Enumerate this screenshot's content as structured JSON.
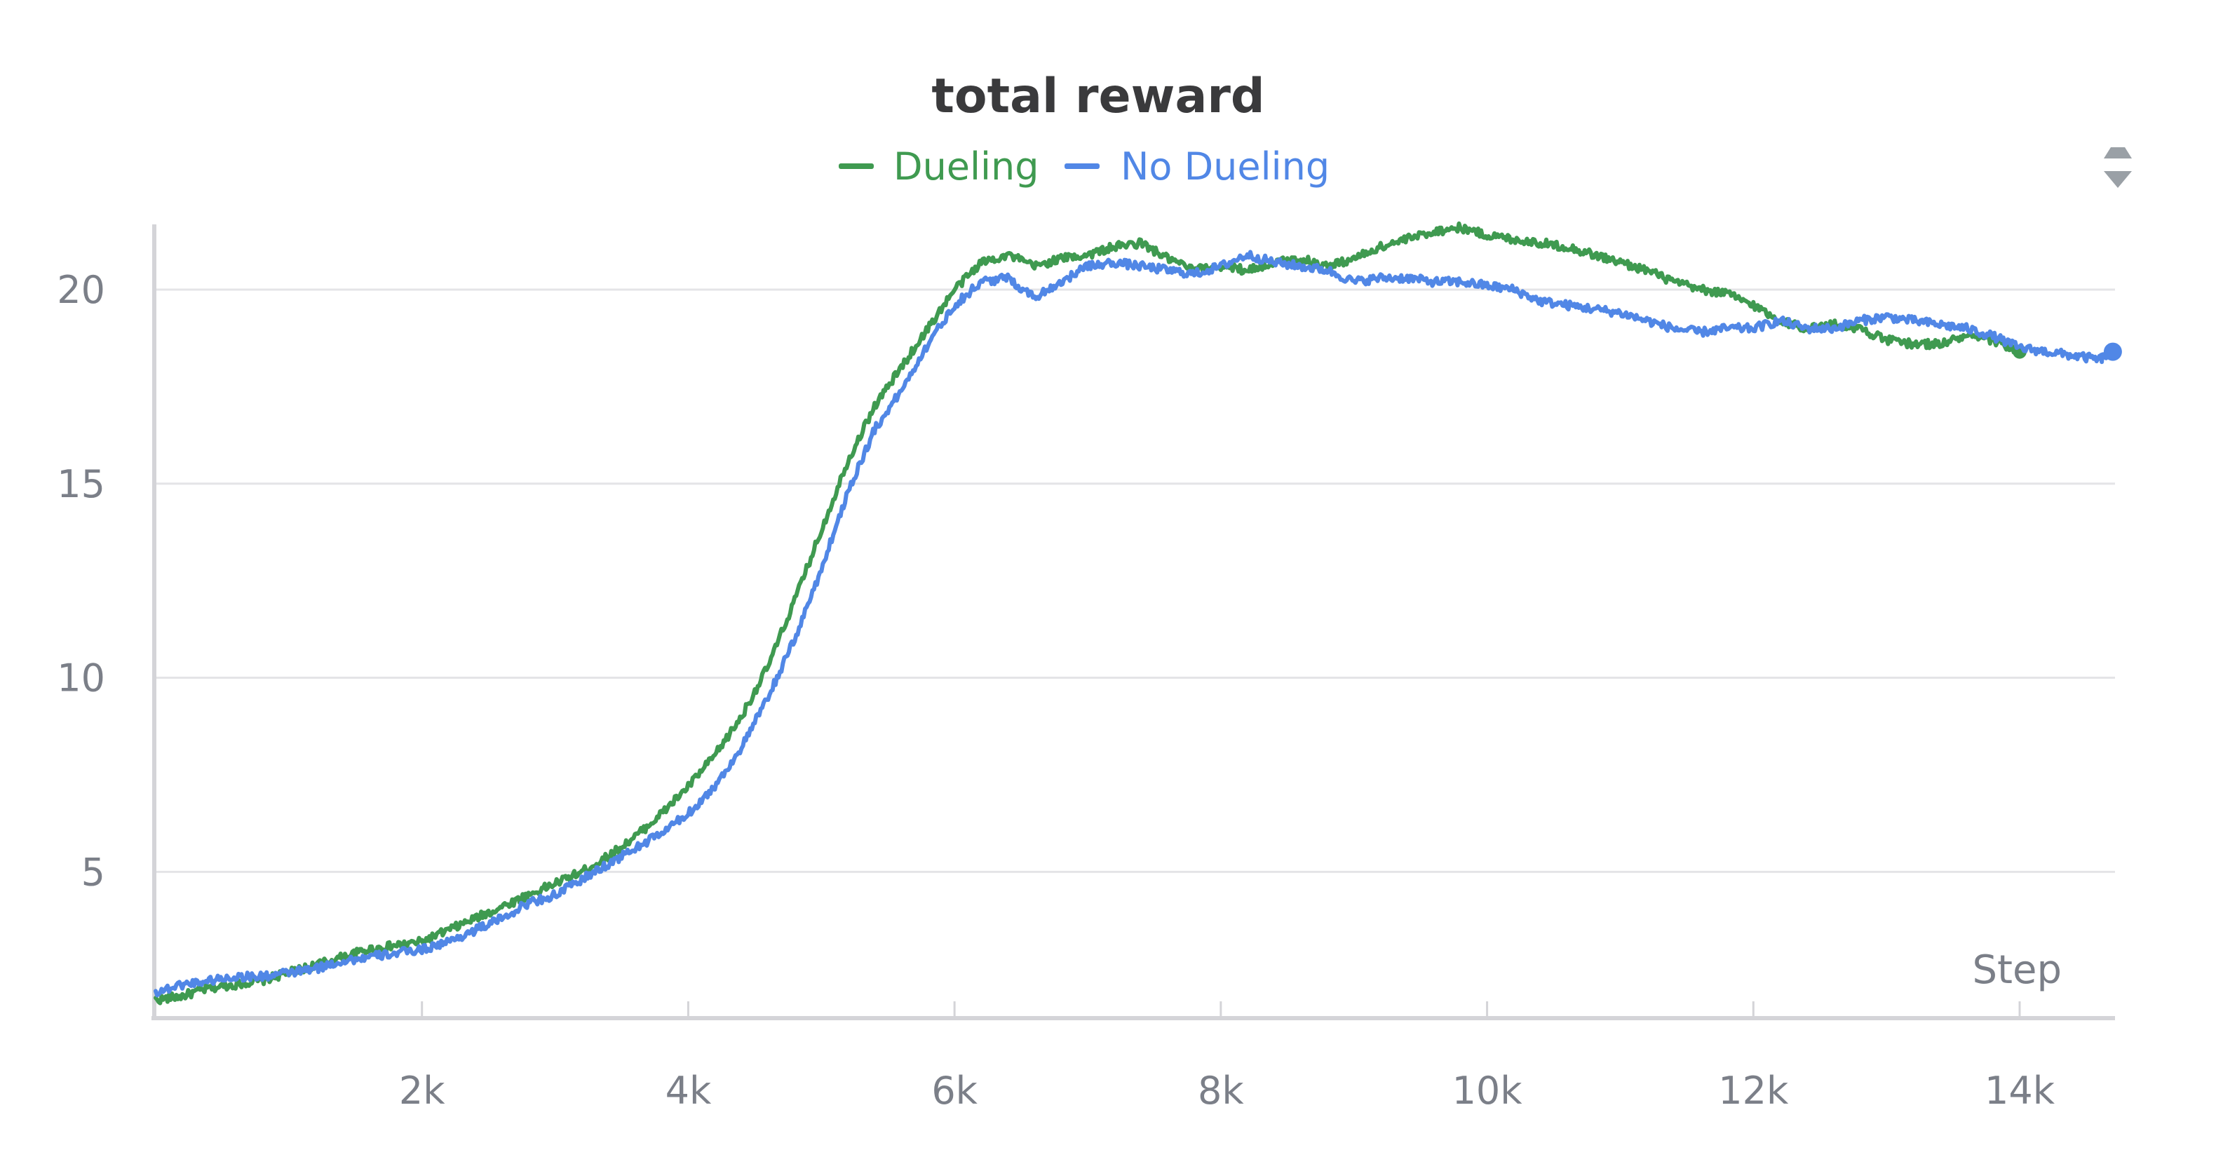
{
  "chart_data": {
    "type": "line",
    "title": "total reward",
    "xlabel": "Step",
    "ylabel": "",
    "xlim": [
      0,
      14700
    ],
    "ylim": [
      1.7,
      21.8
    ],
    "x_ticks": [
      {
        "value": 2000,
        "label": "2k"
      },
      {
        "value": 4000,
        "label": "4k"
      },
      {
        "value": 6000,
        "label": "6k"
      },
      {
        "value": 8000,
        "label": "8k"
      },
      {
        "value": 10000,
        "label": "10k"
      },
      {
        "value": 12000,
        "label": "12k"
      },
      {
        "value": 14000,
        "label": "14k"
      }
    ],
    "y_ticks": [
      {
        "value": 5,
        "label": "5"
      },
      {
        "value": 10,
        "label": "10"
      },
      {
        "value": 15,
        "label": "15"
      },
      {
        "value": 20,
        "label": "20"
      }
    ],
    "grid": true,
    "legend_position": "top-center",
    "series": [
      {
        "name": "Dueling",
        "color": "#3f9a50",
        "x": [
          0,
          200,
          400,
          600,
          800,
          1000,
          1200,
          1400,
          1600,
          1800,
          2000,
          2200,
          2400,
          2600,
          2800,
          3000,
          3200,
          3400,
          3600,
          3800,
          4000,
          4200,
          4400,
          4600,
          4800,
          5000,
          5200,
          5400,
          5600,
          5800,
          6000,
          6200,
          6400,
          6600,
          6800,
          7000,
          7200,
          7400,
          7600,
          7800,
          8000,
          8200,
          8400,
          8600,
          8800,
          9000,
          9200,
          9400,
          9600,
          9800,
          10000,
          10200,
          10400,
          10600,
          10800,
          11000,
          11200,
          11400,
          11600,
          11800,
          12000,
          12200,
          12400,
          12600,
          12800,
          13000,
          13200,
          13400,
          13600,
          13800,
          14000
        ],
        "y": [
          1.7,
          1.8,
          2.0,
          2.1,
          2.2,
          2.4,
          2.6,
          2.8,
          3.0,
          3.1,
          3.2,
          3.5,
          3.8,
          4.1,
          4.4,
          4.7,
          5.0,
          5.4,
          5.9,
          6.5,
          7.2,
          8.0,
          9.0,
          10.3,
          12.0,
          13.8,
          15.6,
          17.0,
          18.0,
          19.0,
          20.0,
          20.7,
          20.9,
          20.6,
          20.8,
          20.9,
          21.1,
          21.2,
          20.8,
          20.5,
          20.6,
          20.5,
          20.7,
          20.8,
          20.6,
          20.8,
          21.1,
          21.3,
          21.5,
          21.6,
          21.4,
          21.3,
          21.2,
          21.1,
          20.9,
          20.7,
          20.5,
          20.2,
          20.0,
          19.9,
          19.6,
          19.2,
          19.0,
          19.1,
          19.0,
          18.7,
          18.6,
          18.6,
          18.8,
          18.7,
          18.4
        ]
      },
      {
        "name": "No Dueling",
        "color": "#5187e6",
        "x": [
          0,
          200,
          400,
          600,
          800,
          1000,
          1200,
          1400,
          1600,
          1800,
          2000,
          2200,
          2400,
          2600,
          2800,
          3000,
          3200,
          3400,
          3600,
          3800,
          4000,
          4200,
          4400,
          4600,
          4800,
          5000,
          5200,
          5400,
          5600,
          5800,
          6000,
          6200,
          6400,
          6600,
          6800,
          7000,
          7200,
          7400,
          7600,
          7800,
          8000,
          8200,
          8400,
          8600,
          8800,
          9000,
          9200,
          9400,
          9600,
          9800,
          10000,
          10200,
          10400,
          10600,
          10800,
          11000,
          11200,
          11400,
          11600,
          11800,
          12000,
          12200,
          12400,
          12600,
          12800,
          13000,
          13200,
          13400,
          13600,
          13800,
          14000,
          14200,
          14400,
          14600,
          14700
        ],
        "y": [
          1.9,
          2.1,
          2.2,
          2.3,
          2.3,
          2.4,
          2.5,
          2.7,
          2.8,
          2.9,
          3.0,
          3.2,
          3.5,
          3.8,
          4.2,
          4.4,
          4.8,
          5.2,
          5.6,
          6.0,
          6.5,
          7.2,
          8.2,
          9.5,
          11.0,
          12.8,
          14.8,
          16.4,
          17.4,
          18.6,
          19.6,
          20.2,
          20.3,
          19.8,
          20.2,
          20.6,
          20.7,
          20.6,
          20.5,
          20.4,
          20.6,
          20.9,
          20.7,
          20.6,
          20.5,
          20.2,
          20.3,
          20.3,
          20.2,
          20.2,
          20.1,
          20.0,
          19.7,
          19.6,
          19.5,
          19.4,
          19.2,
          19.0,
          18.9,
          19.0,
          19.0,
          19.2,
          19.0,
          19.0,
          19.2,
          19.3,
          19.2,
          19.1,
          19.0,
          18.8,
          18.5,
          18.4,
          18.3,
          18.2,
          18.4
        ]
      }
    ]
  },
  "colors": {
    "gridline": "#e4e4e7",
    "axis": "#d4d4d8",
    "text_muted": "#7b7f88",
    "title": "#3a3a3c",
    "handle_icon": "#9aa0a6"
  },
  "icons": {
    "legend_handle": "drag-handle-icon"
  }
}
